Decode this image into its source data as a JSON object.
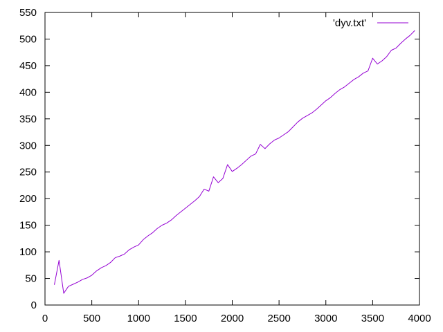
{
  "chart_data": {
    "type": "line",
    "title": "",
    "xlabel": "",
    "ylabel": "",
    "xlim": [
      0,
      4000
    ],
    "ylim": [
      0,
      550
    ],
    "xticks": [
      0,
      500,
      1000,
      1500,
      2000,
      2500,
      3000,
      3500,
      4000
    ],
    "yticks": [
      0,
      50,
      100,
      150,
      200,
      250,
      300,
      350,
      400,
      450,
      500,
      550
    ],
    "xtick_labels": [
      "0",
      "500",
      "1000",
      "1500",
      "2000",
      "2500",
      "3000",
      "3500",
      "4000"
    ],
    "ytick_labels": [
      "0",
      "50",
      "100",
      "150",
      "200",
      "250",
      "300",
      "350",
      "400",
      "450",
      "500",
      "550"
    ],
    "grid": false,
    "legend_position": "top-right",
    "series": [
      {
        "name": "'dyv.txt'",
        "color": "#9400d3",
        "x": [
          100,
          150,
          200,
          250,
          300,
          350,
          400,
          450,
          500,
          550,
          600,
          650,
          700,
          750,
          800,
          850,
          900,
          950,
          1000,
          1050,
          1100,
          1150,
          1200,
          1250,
          1300,
          1350,
          1400,
          1450,
          1500,
          1550,
          1600,
          1650,
          1700,
          1750,
          1800,
          1850,
          1900,
          1950,
          2000,
          2050,
          2100,
          2150,
          2200,
          2250,
          2300,
          2350,
          2400,
          2450,
          2500,
          2550,
          2600,
          2650,
          2700,
          2750,
          2800,
          2850,
          2900,
          2950,
          3000,
          3050,
          3100,
          3150,
          3200,
          3250,
          3300,
          3350,
          3400,
          3450,
          3500,
          3550,
          3600,
          3650,
          3700,
          3750,
          3800,
          3850,
          3900,
          3950
        ],
        "y": [
          38,
          84,
          22,
          35,
          39,
          43,
          48,
          51,
          56,
          64,
          70,
          74,
          80,
          89,
          92,
          96,
          104,
          109,
          113,
          123,
          130,
          136,
          144,
          150,
          154,
          160,
          168,
          175,
          182,
          189,
          196,
          204,
          218,
          214,
          241,
          230,
          238,
          264,
          251,
          257,
          264,
          272,
          280,
          284,
          302,
          294,
          303,
          310,
          314,
          320,
          326,
          335,
          344,
          351,
          356,
          361,
          368,
          376,
          384,
          390,
          398,
          405,
          410,
          417,
          424,
          429,
          436,
          440,
          464,
          453,
          459,
          467,
          479,
          483,
          492,
          500,
          507,
          516
        ]
      }
    ]
  }
}
